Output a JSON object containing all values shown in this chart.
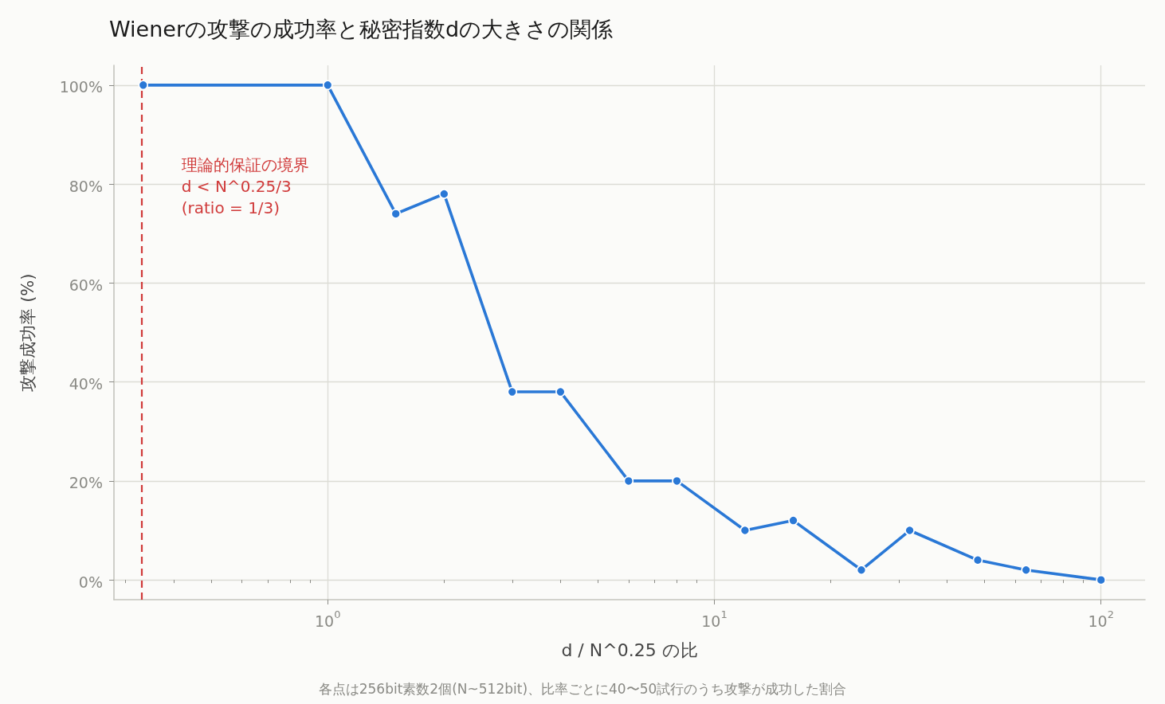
{
  "chart_data": {
    "type": "line",
    "title": "Wienerの攻撃の成功率と秘密指数dの大きさの関係",
    "xlabel": "d / N^0.25 の比",
    "ylabel": "攻撃成功率 (%)",
    "x": [
      0.3333333333333333,
      1,
      1.5,
      2,
      3,
      4,
      6,
      8,
      12,
      16,
      24,
      32,
      48,
      64,
      100
    ],
    "values": [
      100,
      100,
      74,
      78,
      38,
      38,
      20,
      20,
      10,
      12,
      2,
      10,
      4,
      2,
      0
    ],
    "color": "#2a78d6",
    "log": "x",
    "xlim": [
      0.28,
      130
    ],
    "xticks": [
      {
        "value": 0.3,
        "label": null
      },
      {
        "value": 0.4,
        "label": null
      },
      {
        "value": 0.5,
        "label": null
      },
      {
        "value": 0.6,
        "label": null
      },
      {
        "value": 0.7,
        "label": null
      },
      {
        "value": 0.8,
        "label": null
      },
      {
        "value": 0.9,
        "label": null
      },
      {
        "value": 1,
        "label": "10$^{0}$"
      },
      {
        "value": 2,
        "label": null
      },
      {
        "value": 3,
        "label": null
      },
      {
        "value": 4,
        "label": null
      },
      {
        "value": 5,
        "label": null
      },
      {
        "value": 6,
        "label": null
      },
      {
        "value": 7,
        "label": null
      },
      {
        "value": 8,
        "label": null
      },
      {
        "value": 9,
        "label": null
      },
      {
        "value": 10,
        "label": "10$^{1}$"
      },
      {
        "value": 20,
        "label": null
      },
      {
        "value": 30,
        "label": null
      },
      {
        "value": 40,
        "label": null
      },
      {
        "value": 50,
        "label": null
      },
      {
        "value": 60,
        "label": null
      },
      {
        "value": 70,
        "label": null
      },
      {
        "value": 80,
        "label": null
      },
      {
        "value": 90,
        "label": null
      },
      {
        "value": 100,
        "label": "10$^{2}$"
      }
    ],
    "ylim": [
      -4,
      104
    ],
    "yticks": [
      {
        "value": 0,
        "label": "0%"
      },
      {
        "value": 20,
        "label": "20%"
      },
      {
        "value": 40,
        "label": "40%"
      },
      {
        "value": 60,
        "label": "60%"
      },
      {
        "value": 80,
        "label": "80%"
      },
      {
        "value": 100,
        "label": "100%"
      }
    ],
    "grid": true,
    "marker": "circle",
    "line_style": "solid",
    "ref_lines": [
      {
        "axis": "x",
        "value": 0.3333333333333333,
        "color": "#d03a3a",
        "line_style": "dashed"
      }
    ],
    "annotations": [
      {
        "text": "理論的保証の境界\nd < N^0.25/3\n(ratio = 1/3)",
        "x": 0.3333333333333333,
        "y": 86
      },
      "各点は256bit素数2個(N~512bit)、比率ごとに40〜50試行のうち攻撃が成功した割合"
    ]
  }
}
